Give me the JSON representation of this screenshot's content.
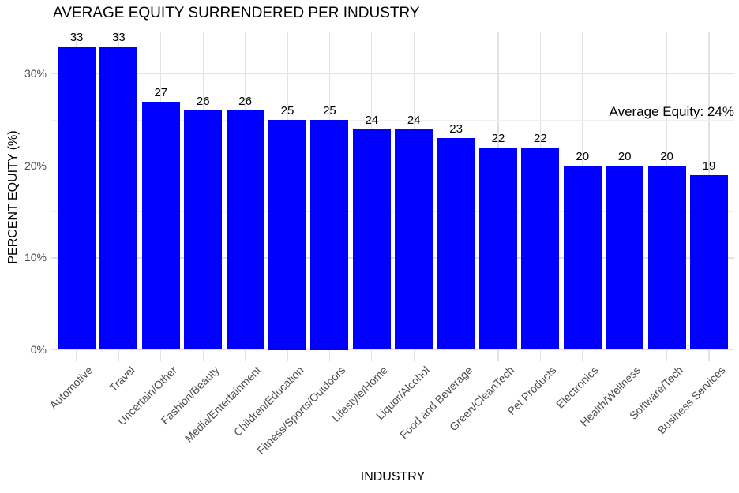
{
  "chart_data": {
    "type": "bar",
    "title": "AVERAGE EQUITY SURRENDERED PER INDUSTRY",
    "xlabel": "INDUSTRY",
    "ylabel": "PERCENT EQUITY (%)",
    "categories": [
      "Automotive",
      "Travel",
      "Uncertain/Other",
      "Fashion/Beauty",
      "Media/Entertainment",
      "Children/Education",
      "Fitness/Sports/Outdoors",
      "Lifestyle/Home",
      "Liquor/Alcohol",
      "Food and Beverage",
      "Green/CleanTech",
      "Pet Products",
      "Electronics",
      "Health/Wellness",
      "Software/Tech",
      "Business Services"
    ],
    "values": [
      33,
      33,
      27,
      26,
      26,
      25,
      25,
      24,
      24,
      23,
      22,
      22,
      20,
      20,
      20,
      19
    ],
    "bar_color": "#0000FF",
    "ylim": [
      0,
      34.65
    ],
    "y_major_ticks": [
      {
        "value": 0,
        "label": "0%"
      },
      {
        "value": 10,
        "label": "10%"
      },
      {
        "value": 20,
        "label": "20%"
      },
      {
        "value": 30,
        "label": "30%"
      }
    ],
    "y_minor_ticks": [
      5,
      15,
      25
    ],
    "grid": true,
    "legend": "none",
    "reference_line": {
      "value": 24,
      "label": "Average Equity: 24%",
      "color": "#FF0000"
    },
    "colors": {
      "grid_major": "#E2E2E2",
      "grid_minor": "#EFEFEF",
      "tick_label": "#4D4D4D",
      "text": "#000000",
      "background": "#FFFFFF"
    }
  }
}
